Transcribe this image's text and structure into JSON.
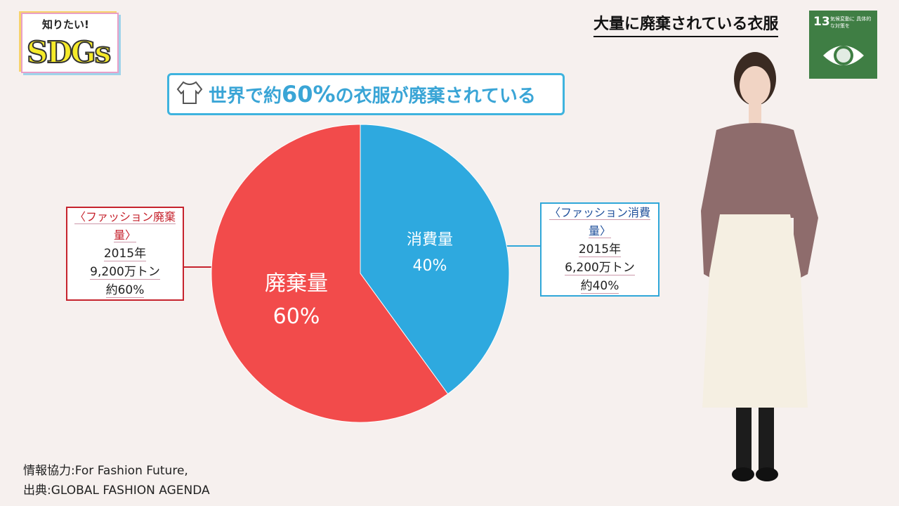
{
  "logo": {
    "line1": "知りたい!",
    "line2": "SDGs"
  },
  "header": {
    "title": "大量に廃棄されている衣服"
  },
  "sdg_badge": {
    "number": "13",
    "text": "気候変動に 具体的な対策を",
    "color": "#3f7e44"
  },
  "banner": {
    "pre": "世界で約",
    "highlight": "60%",
    "post": "の衣服が廃棄されている"
  },
  "chart_data": {
    "type": "pie",
    "title": "世界で約60%の衣服が廃棄されている",
    "slices": [
      {
        "label": "消費量",
        "value": 40,
        "display": "40%",
        "color": "#2ea9df"
      },
      {
        "label": "廃棄量",
        "value": 60,
        "display": "60%",
        "color": "#f24b4b"
      }
    ]
  },
  "left_box": {
    "heading": "〈ファッション廃棄量〉",
    "year": "2015年",
    "amount": "9,200万トン",
    "share": "約60%"
  },
  "right_box": {
    "heading": "〈ファッション消費量〉",
    "year": "2015年",
    "amount": "6,200万トン",
    "share": "約40%"
  },
  "source": {
    "line1": "情報協力:For Fashion Future,",
    "line2": "出典:GLOBAL FASHION AGENDA"
  }
}
